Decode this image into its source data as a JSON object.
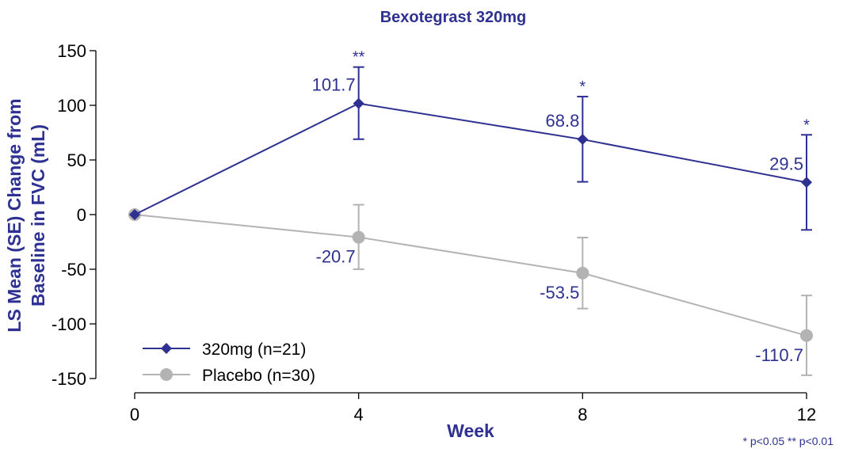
{
  "chart_data": {
    "type": "line",
    "title": "Bexotegrast 320mg",
    "xlabel": "Week",
    "ylabel_lines": [
      "LS Mean (SE) Change from",
      "Baseline in FVC (mL)"
    ],
    "x": [
      0,
      4,
      8,
      12
    ],
    "x_ticks": [
      "0",
      "4",
      "8",
      "12"
    ],
    "ylim": [
      -150,
      150
    ],
    "y_ticks": [
      "150",
      "100",
      "50",
      "0",
      "-50",
      "-100",
      "-150"
    ],
    "series": [
      {
        "name": "320mg (n=21)",
        "color": "#2E3192",
        "marker": "diamond",
        "values": [
          0,
          101.7,
          68.8,
          29.5
        ],
        "err_low": [
          0,
          69,
          30,
          -14
        ],
        "err_high": [
          0,
          135,
          108,
          73
        ],
        "labels": [
          "",
          "101.7",
          "68.8",
          "29.5"
        ],
        "significance": [
          "",
          "**",
          "*",
          "*"
        ]
      },
      {
        "name": "Placebo (n=30)",
        "color": "#B3B3B3",
        "marker": "circle",
        "values": [
          0,
          -20.7,
          -53.5,
          -110.7
        ],
        "err_low": [
          0,
          -50,
          -86,
          -147
        ],
        "err_high": [
          0,
          9,
          -21,
          -74
        ],
        "labels": [
          "",
          "-20.7",
          "-53.5",
          "-110.7"
        ]
      }
    ],
    "legend_position": "bottom-left",
    "footnote": "* p<0.05  ** p<0.01"
  }
}
